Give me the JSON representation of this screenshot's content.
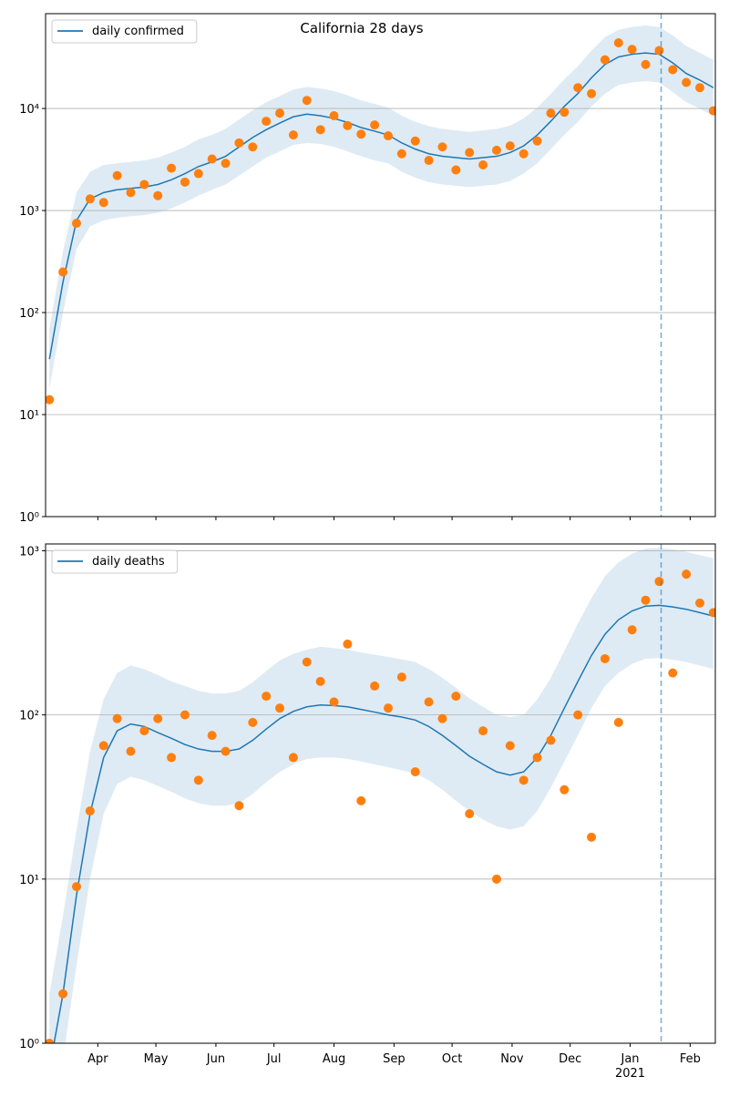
{
  "chart_data": [
    {
      "type": "line",
      "title": "California 28 days",
      "yscale": "log",
      "grid": "y",
      "legend": "upper left",
      "vline": 318,
      "x": [
        2,
        9,
        16,
        23,
        30,
        37,
        44,
        51,
        58,
        65,
        72,
        79,
        86,
        93,
        100,
        107,
        114,
        121,
        128,
        135,
        142,
        149,
        156,
        163,
        170,
        177,
        184,
        191,
        198,
        205,
        212,
        219,
        226,
        233,
        240,
        247,
        254,
        261,
        268,
        275,
        282,
        289,
        296,
        303,
        310,
        317,
        324,
        331,
        338,
        345
      ],
      "xlim": [
        0,
        346
      ],
      "xticks": [
        27,
        57,
        88,
        118,
        149,
        180,
        210,
        241,
        271,
        302,
        333
      ],
      "ylim": [
        1,
        85000
      ],
      "yticks": [
        {
          "value": 1,
          "label": "10⁰"
        },
        {
          "value": 10,
          "label": "10¹"
        },
        {
          "value": 100,
          "label": "10²"
        },
        {
          "value": 1000,
          "label": "10³"
        },
        {
          "value": 10000,
          "label": "10⁴"
        }
      ],
      "series": [
        {
          "name": "daily confirmed",
          "color": "#1f77b4",
          "values": [
            35,
            200,
            800,
            1300,
            1500,
            1600,
            1650,
            1700,
            1800,
            2000,
            2300,
            2700,
            3000,
            3400,
            4200,
            5200,
            6200,
            7200,
            8300,
            8800,
            8500,
            8000,
            7300,
            6500,
            6000,
            5500,
            4600,
            4000,
            3600,
            3400,
            3300,
            3200,
            3300,
            3400,
            3700,
            4300,
            5500,
            7500,
            10500,
            14000,
            20000,
            27000,
            32000,
            34000,
            35000,
            34000,
            28000,
            22000,
            19000,
            16000
          ]
        }
      ],
      "observed": {
        "color": "#ff7f0e",
        "values": [
          14,
          250,
          750,
          1300,
          1200,
          2200,
          1500,
          1800,
          1400,
          2600,
          1900,
          2300,
          3200,
          2900,
          4600,
          4200,
          7500,
          9000,
          5500,
          12000,
          6200,
          8500,
          6800,
          5600,
          6900,
          5400,
          3600,
          4800,
          3100,
          4200,
          2500,
          3700,
          2800,
          3900,
          4300,
          3600,
          4800,
          9000,
          9200,
          16000,
          14000,
          30000,
          44000,
          38000,
          27000,
          37000,
          24000,
          18000,
          16000,
          9500
        ]
      },
      "band": {
        "color": "#1f77b4",
        "lower": [
          18,
          100,
          420,
          700,
          800,
          850,
          880,
          900,
          950,
          1050,
          1200,
          1400,
          1600,
          1800,
          2200,
          2700,
          3300,
          3800,
          4400,
          4600,
          4500,
          4200,
          3800,
          3400,
          3100,
          2900,
          2400,
          2100,
          1900,
          1800,
          1750,
          1700,
          1750,
          1800,
          1950,
          2300,
          2900,
          4000,
          5500,
          7400,
          10500,
          14000,
          17000,
          18000,
          18500,
          18000,
          14500,
          11500,
          10000,
          8400
        ],
        "upper": [
          70,
          400,
          1500,
          2400,
          2800,
          2900,
          3000,
          3100,
          3300,
          3700,
          4200,
          5000,
          5500,
          6300,
          7800,
          9600,
          11500,
          13300,
          15300,
          16300,
          15700,
          14800,
          13500,
          12000,
          11100,
          10200,
          8500,
          7400,
          6700,
          6300,
          6100,
          5900,
          6100,
          6300,
          6800,
          8000,
          10200,
          13900,
          19400,
          25900,
          37000,
          50000,
          59000,
          63000,
          65000,
          63000,
          52000,
          41000,
          35000,
          30000
        ]
      }
    },
    {
      "type": "line",
      "yscale": "log",
      "grid": "y",
      "legend": "upper left",
      "vline": 318,
      "x": [
        2,
        9,
        16,
        23,
        30,
        37,
        44,
        51,
        58,
        65,
        72,
        79,
        86,
        93,
        100,
        107,
        114,
        121,
        128,
        135,
        142,
        149,
        156,
        163,
        170,
        177,
        184,
        191,
        198,
        205,
        212,
        219,
        226,
        233,
        240,
        247,
        254,
        261,
        268,
        275,
        282,
        289,
        296,
        303,
        310,
        317,
        324,
        331,
        338,
        345
      ],
      "xlim": [
        0,
        346
      ],
      "xticks": [
        {
          "value": 27,
          "label": "Apr"
        },
        {
          "value": 57,
          "label": "May"
        },
        {
          "value": 88,
          "label": "Jun"
        },
        {
          "value": 118,
          "label": "Jul"
        },
        {
          "value": 149,
          "label": "Aug"
        },
        {
          "value": 180,
          "label": "Sep"
        },
        {
          "value": 210,
          "label": "Oct"
        },
        {
          "value": 241,
          "label": "Nov"
        },
        {
          "value": 271,
          "label": "Dec"
        },
        {
          "value": 302,
          "label": "Jan"
        },
        {
          "value": 333,
          "label": "Feb"
        }
      ],
      "year_label": "2021",
      "ylim": [
        1,
        1100
      ],
      "yticks": [
        {
          "value": 1,
          "label": "10⁰"
        },
        {
          "value": 10,
          "label": "10¹"
        },
        {
          "value": 100,
          "label": "10²"
        },
        {
          "value": 1000,
          "label": "10³"
        }
      ],
      "series": [
        {
          "name": "daily deaths",
          "color": "#1f77b4",
          "values": [
            0.7,
            2,
            8,
            25,
            55,
            80,
            88,
            85,
            78,
            72,
            66,
            62,
            60,
            60,
            62,
            70,
            82,
            95,
            105,
            112,
            115,
            114,
            112,
            108,
            104,
            100,
            97,
            93,
            85,
            75,
            65,
            56,
            50,
            45,
            43,
            45,
            55,
            75,
            110,
            160,
            230,
            310,
            380,
            430,
            460,
            465,
            455,
            440,
            420,
            400
          ]
        }
      ],
      "observed": {
        "color": "#ff7f0e",
        "values": [
          1,
          2,
          9,
          26,
          65,
          95,
          60,
          80,
          95,
          55,
          100,
          40,
          75,
          60,
          28,
          90,
          130,
          110,
          55,
          210,
          160,
          120,
          270,
          30,
          150,
          110,
          170,
          45,
          120,
          95,
          130,
          25,
          80,
          10,
          65,
          40,
          55,
          70,
          35,
          100,
          18,
          220,
          90,
          330,
          500,
          650,
          180,
          720,
          480,
          420
        ]
      },
      "band": {
        "color": "#1f77b4",
        "lower": [
          0.3,
          0.8,
          3,
          10,
          25,
          38,
          42,
          40,
          37,
          34,
          31,
          29,
          28,
          28,
          29,
          33,
          39,
          45,
          50,
          54,
          55,
          55,
          54,
          52,
          50,
          48,
          46,
          44,
          40,
          35,
          30,
          26,
          23,
          21,
          20,
          21,
          26,
          36,
          52,
          75,
          110,
          150,
          180,
          205,
          220,
          222,
          217,
          210,
          200,
          190
        ],
        "upper": [
          2,
          6,
          20,
          60,
          125,
          180,
          200,
          190,
          175,
          160,
          150,
          140,
          135,
          135,
          140,
          158,
          185,
          215,
          235,
          250,
          260,
          255,
          250,
          240,
          233,
          225,
          218,
          210,
          190,
          168,
          146,
          126,
          112,
          100,
          97,
          100,
          124,
          168,
          245,
          360,
          515,
          700,
          850,
          960,
          1030,
          1040,
          1020,
          985,
          940,
          900
        ]
      }
    }
  ]
}
